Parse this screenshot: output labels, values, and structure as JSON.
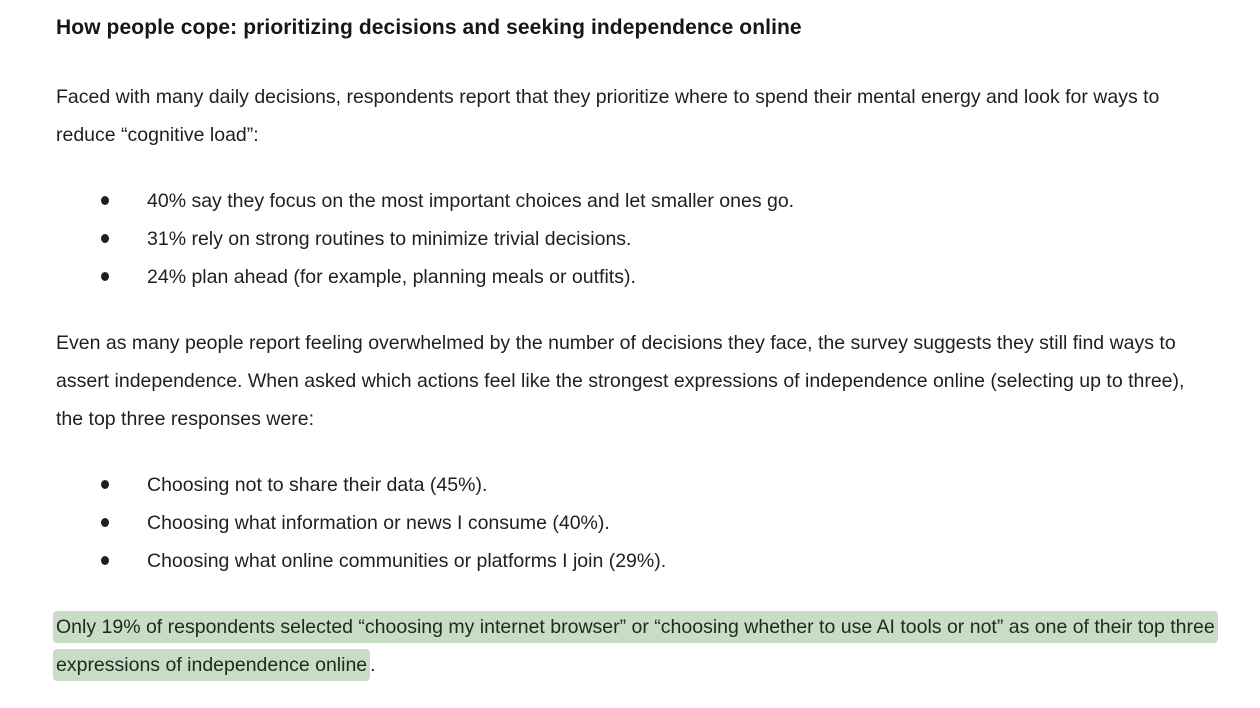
{
  "page": {
    "background_color": "#ffffff",
    "text_color": "#1f1f1f",
    "heading_color": "#161616",
    "highlight_color": "#c8dcc6"
  },
  "document": {
    "heading": "How people cope: prioritizing decisions and seeking independence online",
    "intro_paragraph": "Faced with many daily decisions, respondents report that they prioritize where to spend their mental energy and look for ways to reduce “cognitive load”:",
    "coping_list": [
      "40% say they focus on the most important choices and let smaller ones go.",
      "31% rely on strong routines to minimize trivial decisions.",
      "24% plan ahead (for example, planning meals or outfits)."
    ],
    "independence_paragraph": "Even as many people report feeling overwhelmed by the number of decisions they face, the survey suggests they still find ways to assert independence. When asked which actions feel like the strongest expressions of independence online (selecting up to three), the top three responses were:",
    "independence_list": [
      "Choosing not to share their data (45%).",
      "Choosing what information or news I consume (40%).",
      "Choosing what online communities or platforms I join (29%)."
    ],
    "highlighted_text": "Only 19% of respondents selected “choosing my internet browser” or “choosing whether to use AI tools or not” as one of their top three expressions of independence online",
    "highlighted_suffix": "."
  }
}
